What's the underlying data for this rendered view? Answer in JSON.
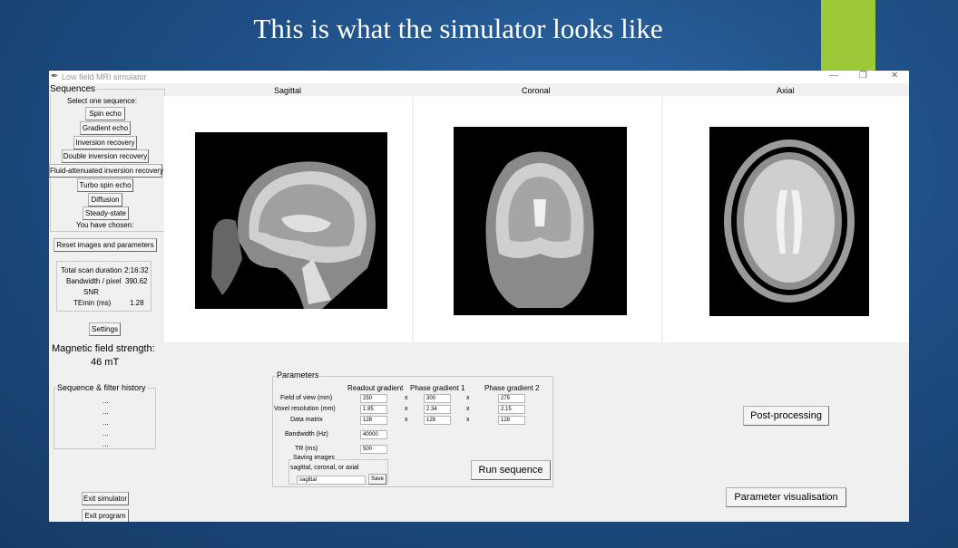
{
  "slide": {
    "title": "This is what the simulator looks like"
  },
  "window": {
    "title": "Low field MRI simulator",
    "min": "—",
    "restore": "❐",
    "close": "✕"
  },
  "sequences": {
    "header": "Sequences",
    "prompt": "Select one sequence:",
    "buttons": [
      "Spin echo",
      "Gradient echo",
      "Inversion recovery",
      "Double inversion recovery",
      "Fluid-attenuated inversion recovery",
      "Turbo spin echo",
      "Diffusion",
      "Steady-state"
    ],
    "chosen_label": "You have chosen:"
  },
  "reset_button": "Reset images and parameters",
  "stats": {
    "total_scan_duration_label": "Total scan duration",
    "total_scan_duration": "2:16:32",
    "bandwidth_pixel_label": "Bandwidth / pixel",
    "bandwidth_pixel": "390.62",
    "snr_label": "SNR",
    "temin_label": "TEmin (ms)",
    "temin": "1.28"
  },
  "settings_button": "Settings",
  "field_strength": {
    "label": "Magnetic field strength:",
    "value": "46 mT"
  },
  "history": {
    "header": "Sequence & filter history",
    "items": [
      "...",
      "...",
      "...",
      "...",
      "..."
    ]
  },
  "exit_simulator": "Exit simulator",
  "exit_program": "Exit program",
  "views": {
    "sagittal": "Sagittal",
    "coronal": "Coronal",
    "axial": "Axial"
  },
  "parameters": {
    "header": "Parameters",
    "col_readout": "Readout gradient",
    "col_phase1": "Phase gradient 1",
    "col_phase2": "Phase gradient 2",
    "fov_label": "Field of view (mm)",
    "fov": [
      "250",
      "300",
      "275"
    ],
    "voxel_label": "Voxel resolution (mm)",
    "voxel": [
      "1.95",
      "2.34",
      "2.15"
    ],
    "matrix_label": "Data matrix",
    "matrix": [
      "128",
      "128",
      "128"
    ],
    "x": "x",
    "bandwidth_label": "Bandwidth (Hz)",
    "bandwidth": "40000",
    "tr_label": "TR (ms)",
    "tr": "500",
    "saving_header": "Saving images",
    "saving_hint": "sagittal, coronal, or axial",
    "saving_value": "sagittal",
    "save_button": "Save",
    "run_button": "Run sequence"
  },
  "post_processing_button": "Post-processing",
  "param_vis_button": "Parameter visualisation",
  "colors": {
    "accent": "#9dc83a",
    "background": "#1f4f86"
  }
}
